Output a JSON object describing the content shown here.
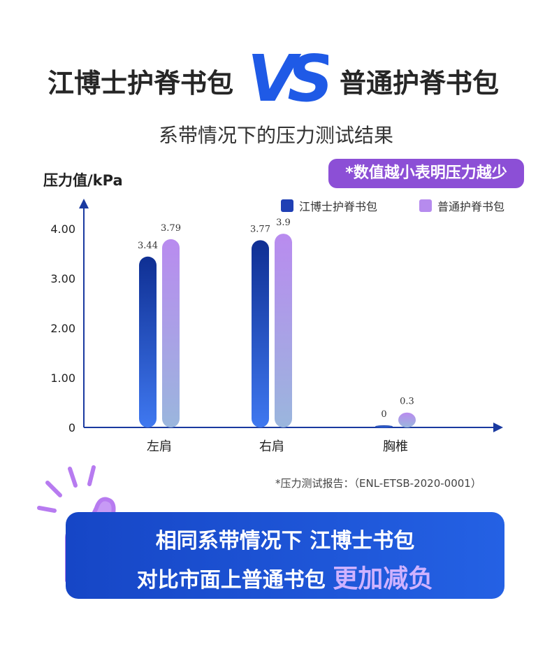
{
  "header": {
    "left_title": "江博士护脊书包",
    "vs": "VS",
    "right_title": "普通护脊书包",
    "subtitle": "系带情况下的压力测试结果"
  },
  "note_badge": "*数值越小表明压力越少",
  "source_note": "*压力测试报告：（ENL-ETSB-2020-0001）",
  "banner": {
    "line1": "相同系带情况下 江博士书包",
    "line2_prefix": "对比市面上普通书包",
    "line2_highlight": "更加减负"
  },
  "colors": {
    "series_a_top": "#0f2f93",
    "series_a_bottom": "#3f78f0",
    "series_b_top": "#b98bef",
    "series_b_bottom": "#9ab6dd",
    "badge": "#8c4fd6",
    "axis": "#1a3aa0"
  },
  "chart_data": {
    "type": "bar",
    "ylabel": "压力值/kPa",
    "categories": [
      "左肩",
      "右肩",
      "胸椎"
    ],
    "series": [
      {
        "name": "江博士护脊书包",
        "values": [
          3.44,
          3.77,
          0
        ],
        "labels": [
          "3.44",
          "3.77",
          "0"
        ]
      },
      {
        "name": "普通护脊书包",
        "values": [
          3.79,
          3.9,
          0.3
        ],
        "labels": [
          "3.79",
          "3.9",
          "0.3"
        ]
      }
    ],
    "yticks": [
      "0",
      "1.00",
      "2.00",
      "3.00",
      "4.00"
    ],
    "ylim": [
      0,
      4
    ],
    "legend_position": "top-right",
    "grid": false
  }
}
